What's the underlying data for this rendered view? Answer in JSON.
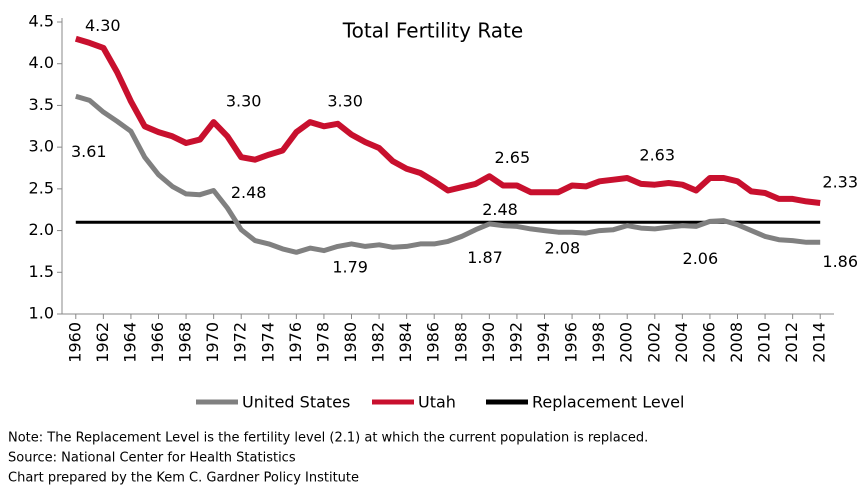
{
  "chart_data": {
    "type": "line",
    "title": "Total Fertility Rate",
    "x": [
      1960,
      1961,
      1962,
      1963,
      1964,
      1965,
      1966,
      1967,
      1968,
      1969,
      1970,
      1971,
      1972,
      1973,
      1974,
      1975,
      1976,
      1977,
      1978,
      1979,
      1980,
      1981,
      1982,
      1983,
      1984,
      1985,
      1986,
      1987,
      1988,
      1989,
      1990,
      1991,
      1992,
      1993,
      1994,
      1995,
      1996,
      1997,
      1998,
      1999,
      2000,
      2001,
      2002,
      2003,
      2004,
      2005,
      2006,
      2007,
      2008,
      2009,
      2010,
      2011,
      2012,
      2013,
      2014
    ],
    "series": [
      {
        "name": "United States",
        "color": "#808080",
        "values": [
          3.61,
          3.56,
          3.42,
          3.31,
          3.19,
          2.88,
          2.67,
          2.53,
          2.44,
          2.43,
          2.48,
          2.27,
          2.01,
          1.88,
          1.84,
          1.78,
          1.74,
          1.79,
          1.76,
          1.81,
          1.84,
          1.81,
          1.83,
          1.8,
          1.81,
          1.84,
          1.84,
          1.87,
          1.93,
          2.01,
          2.08,
          2.06,
          2.05,
          2.02,
          2.0,
          1.98,
          1.98,
          1.97,
          2.0,
          2.01,
          2.06,
          2.03,
          2.02,
          2.04,
          2.06,
          2.05,
          2.11,
          2.12,
          2.07,
          2.0,
          1.93,
          1.89,
          1.88,
          1.86,
          1.86
        ],
        "value_labels": [
          "3.61",
          null,
          null,
          null,
          null,
          null,
          null,
          null,
          null,
          null,
          "2.48",
          null,
          null,
          null,
          null,
          null,
          null,
          "1.79",
          null,
          null,
          null,
          null,
          null,
          null,
          null,
          null,
          null,
          "1.87",
          null,
          null,
          "2.08",
          null,
          null,
          null,
          null,
          null,
          null,
          null,
          null,
          null,
          null,
          null,
          null,
          null,
          "2.06",
          null,
          null,
          null,
          null,
          null,
          null,
          null,
          null,
          null,
          "1.86"
        ]
      },
      {
        "name": "Utah",
        "color": "#c8102e",
        "values": [
          4.3,
          4.25,
          4.19,
          3.9,
          3.55,
          3.25,
          3.18,
          3.13,
          3.05,
          3.09,
          3.3,
          3.13,
          2.88,
          2.85,
          2.91,
          2.96,
          3.18,
          3.3,
          3.25,
          3.28,
          3.15,
          3.06,
          2.99,
          2.83,
          2.74,
          2.69,
          2.59,
          2.48,
          2.52,
          2.56,
          2.65,
          2.54,
          2.54,
          2.46,
          2.46,
          2.46,
          2.54,
          2.53,
          2.59,
          2.61,
          2.63,
          2.56,
          2.55,
          2.57,
          2.55,
          2.48,
          2.63,
          2.63,
          2.59,
          2.47,
          2.45,
          2.38,
          2.38,
          2.35,
          2.33
        ],
        "value_labels": [
          "4.30",
          null,
          null,
          null,
          null,
          null,
          null,
          null,
          null,
          null,
          "3.30",
          null,
          null,
          null,
          null,
          null,
          null,
          "3.30",
          null,
          null,
          null,
          null,
          null,
          null,
          null,
          null,
          null,
          "2.48",
          null,
          null,
          "2.65",
          null,
          null,
          null,
          null,
          null,
          null,
          null,
          null,
          null,
          "2.63",
          null,
          null,
          null,
          null,
          null,
          null,
          null,
          null,
          null,
          null,
          null,
          null,
          null,
          "2.33"
        ]
      }
    ],
    "reference_line": {
      "name": "Replacement Level",
      "value": 2.1,
      "color": "#000000"
    },
    "xlim": [
      1959,
      2015
    ],
    "xticks": [
      1960,
      1962,
      1964,
      1966,
      1968,
      1970,
      1972,
      1974,
      1976,
      1978,
      1980,
      1982,
      1984,
      1986,
      1988,
      1990,
      1992,
      1994,
      1996,
      1998,
      2000,
      2002,
      2004,
      2006,
      2008,
      2010,
      2012,
      2014
    ],
    "ylim": [
      1,
      4.5
    ],
    "yticks": [
      {
        "value": 1,
        "label": "1.0"
      },
      1.5,
      {
        "value": 2,
        "label": "2.0"
      },
      2.5,
      {
        "value": 3,
        "label": "3.0"
      },
      3.5,
      {
        "value": 4,
        "label": "4.0"
      },
      4.5
    ],
    "notes": [
      "Note: The Replacement Level is the fertility level (2.1) at which the current population is replaced.",
      "Source: National Center for Health Statistics",
      "Chart prepared by the Kem C. Gardner Policy Institute"
    ]
  }
}
